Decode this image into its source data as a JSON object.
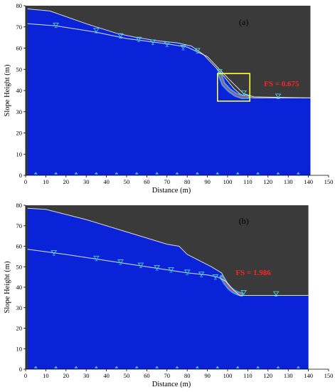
{
  "colors": {
    "soil": "#0a23d8",
    "sky": "#3a3a3a",
    "surface_line": "#d9d9d9",
    "water_line": "#cfe6ff",
    "marker": "#4fd0d8",
    "slip_band": "#3fb8ff",
    "slip_core": "#e03a3a",
    "highlight_box": "#ffff33",
    "fs_text": "#ff2222"
  },
  "chart_data": [
    {
      "type": "area",
      "panel": "(a)",
      "xlabel": "Distance (m)",
      "ylabel": "Slope Height (m)",
      "xlim": [
        0,
        150
      ],
      "ylim": [
        0,
        80
      ],
      "xticks": [
        "0",
        "10",
        "20",
        "30",
        "40",
        "50",
        "60",
        "70",
        "80",
        "90",
        "100",
        "110",
        "120",
        "130",
        "140",
        "150"
      ],
      "yticks": [
        "0",
        "10",
        "20",
        "30",
        "40",
        "50",
        "60",
        "70",
        "80"
      ],
      "domain_x": [
        1,
        141
      ],
      "ground_surface": {
        "x": [
          1,
          12,
          30,
          45,
          55,
          65,
          75,
          82,
          88,
          93,
          97,
          100,
          103,
          106,
          109,
          113,
          141
        ],
        "y": [
          78.5,
          77.5,
          71.5,
          67,
          65,
          63.5,
          62.5,
          61,
          57,
          52,
          48,
          44.5,
          41,
          38.5,
          37,
          36.5,
          36.5
        ]
      },
      "water_table": {
        "x": [
          1,
          15,
          35,
          50,
          70,
          80,
          90,
          100,
          108,
          113,
          141
        ],
        "y": [
          71.5,
          70.5,
          67.5,
          64.5,
          62,
          60.5,
          56,
          46,
          38.5,
          37,
          36.5
        ]
      },
      "water_markers": {
        "x": [
          15,
          35,
          47,
          56,
          63,
          70,
          78,
          85,
          96,
          108,
          125
        ],
        "y": [
          70.5,
          68.0,
          65.5,
          63.8,
          62.5,
          61.5,
          60.0,
          58.5,
          48.5,
          38.5,
          37.0
        ]
      },
      "base_markers": {
        "x": [
          5,
          15,
          25,
          35,
          45,
          55,
          65,
          75,
          85,
          95,
          105,
          115,
          125,
          135
        ],
        "y": 0.5
      },
      "slip_surface": {
        "x": [
          96,
          98,
          101,
          104,
          107,
          110
        ],
        "y": [
          48,
          43,
          40,
          38,
          37,
          37
        ]
      },
      "highlight_box": {
        "x": [
          95,
          111
        ],
        "y": [
          35,
          48
        ]
      },
      "annotation": "FS = 0.675",
      "annotation_at": {
        "x": 118,
        "y": 42
      }
    },
    {
      "type": "area",
      "panel": "(b)",
      "xlabel": "Distance (m)",
      "ylabel": "Slope Height (m)",
      "xlim": [
        0,
        150
      ],
      "ylim": [
        0,
        80
      ],
      "xticks": [
        "0",
        "10",
        "20",
        "30",
        "40",
        "50",
        "60",
        "70",
        "80",
        "90",
        "100",
        "110",
        "120",
        "130",
        "140",
        "150"
      ],
      "yticks": [
        "0",
        "10",
        "20",
        "30",
        "40",
        "50",
        "60",
        "70",
        "80"
      ],
      "domain_x": [
        1,
        140
      ],
      "ground_surface": {
        "x": [
          1,
          10,
          30,
          50,
          60,
          70,
          76,
          80,
          86,
          92,
          97,
          100,
          103,
          106,
          140
        ],
        "y": [
          78.5,
          78,
          73,
          67,
          64,
          61,
          60,
          56,
          53,
          50,
          47,
          42,
          38.5,
          36,
          36
        ]
      },
      "water_table": {
        "x": [
          1,
          20,
          40,
          60,
          80,
          90,
          95,
          99,
          103,
          106,
          140
        ],
        "y": [
          58.5,
          56,
          53,
          50,
          47,
          46,
          45,
          43,
          38.5,
          36,
          36
        ]
      },
      "water_markers": {
        "x": [
          14,
          35,
          47,
          57,
          65,
          72,
          80,
          87,
          94,
          108,
          124
        ],
        "y": [
          56.5,
          53.8,
          52.0,
          50.4,
          49.2,
          48.2,
          47.0,
          46.0,
          44.7,
          37.0,
          36.5
        ]
      },
      "base_markers": {
        "x": [
          5,
          15,
          25,
          35,
          45,
          55,
          65,
          75,
          85,
          95,
          105,
          115,
          125,
          135
        ],
        "y": 0.5
      },
      "slip_surface": {
        "x": [
          97,
          99,
          101,
          103,
          105,
          107
        ],
        "y": [
          45,
          42,
          39.5,
          38,
          37,
          36.5
        ]
      },
      "annotation": "FS = 1.986",
      "annotation_at": {
        "x": 104,
        "y": 46
      }
    }
  ]
}
